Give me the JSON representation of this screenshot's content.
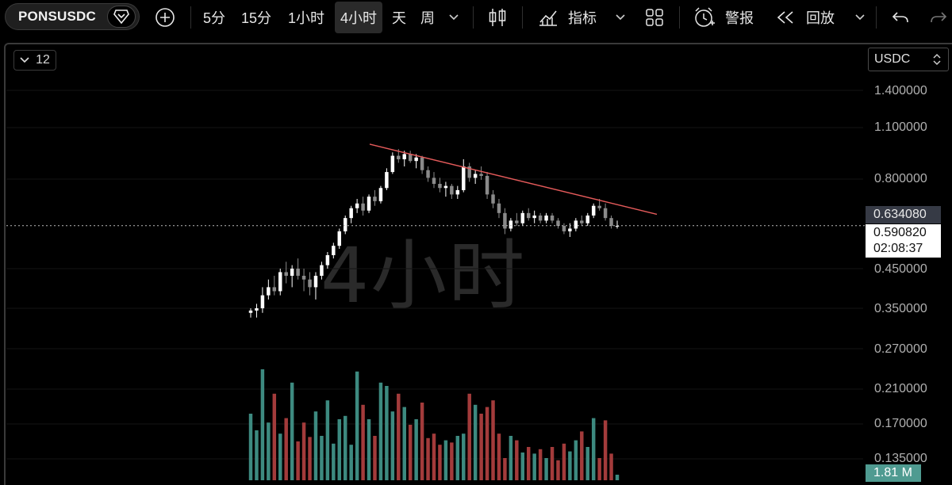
{
  "toolbar": {
    "symbol": "PONSUSDC",
    "intervals": [
      {
        "label": "5分",
        "active": false
      },
      {
        "label": "15分",
        "active": false
      },
      {
        "label": "1小时",
        "active": false
      },
      {
        "label": "4小时",
        "active": true
      },
      {
        "label": "天",
        "active": false
      },
      {
        "label": "周",
        "active": false
      }
    ],
    "indicators_label": "指标",
    "alert_label": "警报",
    "replay_label": "回放"
  },
  "chart": {
    "indicator_count": "12",
    "currency": "USDC",
    "watermark": "4小时",
    "price_axis": [
      "1.400000",
      "1.100000",
      "0.800000",
      "0.634080",
      "0.450000",
      "0.350000",
      "0.270000",
      "0.210000",
      "0.170000",
      "0.135000"
    ],
    "high_marker": "0.634080",
    "last_price": "0.590820",
    "countdown": "02:08:37",
    "volume": "1.81 M",
    "colors": {
      "up": "#ffffff",
      "down": "#8a8a8a",
      "trendline": "#e45a5a",
      "vol_up": "#3d8a80",
      "vol_down": "#a33b3b"
    }
  },
  "chart_data": {
    "type": "candlestick",
    "symbol": "PONSUSDC",
    "timeframe": "4小时",
    "price_scale": "log",
    "candles": [
      [
        0.34,
        0.35,
        0.33,
        0.345
      ],
      [
        0.345,
        0.36,
        0.33,
        0.35
      ],
      [
        0.35,
        0.4,
        0.34,
        0.38
      ],
      [
        0.38,
        0.42,
        0.37,
        0.4
      ],
      [
        0.4,
        0.43,
        0.38,
        0.39
      ],
      [
        0.39,
        0.45,
        0.38,
        0.44
      ],
      [
        0.44,
        0.47,
        0.41,
        0.43
      ],
      [
        0.43,
        0.46,
        0.4,
        0.45
      ],
      [
        0.45,
        0.48,
        0.42,
        0.43
      ],
      [
        0.43,
        0.45,
        0.39,
        0.42
      ],
      [
        0.42,
        0.44,
        0.38,
        0.4
      ],
      [
        0.4,
        0.44,
        0.37,
        0.43
      ],
      [
        0.43,
        0.47,
        0.42,
        0.46
      ],
      [
        0.46,
        0.5,
        0.45,
        0.49
      ],
      [
        0.49,
        0.53,
        0.48,
        0.52
      ],
      [
        0.52,
        0.58,
        0.51,
        0.57
      ],
      [
        0.57,
        0.63,
        0.56,
        0.62
      ],
      [
        0.62,
        0.67,
        0.6,
        0.66
      ],
      [
        0.66,
        0.7,
        0.64,
        0.68
      ],
      [
        0.68,
        0.71,
        0.63,
        0.65
      ],
      [
        0.65,
        0.72,
        0.64,
        0.71
      ],
      [
        0.71,
        0.74,
        0.67,
        0.69
      ],
      [
        0.69,
        0.76,
        0.68,
        0.75
      ],
      [
        0.75,
        0.85,
        0.74,
        0.83
      ],
      [
        0.83,
        0.94,
        0.82,
        0.92
      ],
      [
        0.92,
        0.96,
        0.88,
        0.9
      ],
      [
        0.9,
        0.95,
        0.86,
        0.93
      ],
      [
        0.93,
        0.95,
        0.88,
        0.89
      ],
      [
        0.89,
        0.93,
        0.85,
        0.91
      ],
      [
        0.91,
        0.92,
        0.82,
        0.84
      ],
      [
        0.84,
        0.86,
        0.78,
        0.8
      ],
      [
        0.8,
        0.83,
        0.75,
        0.77
      ],
      [
        0.77,
        0.8,
        0.73,
        0.75
      ],
      [
        0.75,
        0.78,
        0.71,
        0.76
      ],
      [
        0.76,
        0.77,
        0.7,
        0.72
      ],
      [
        0.72,
        0.76,
        0.7,
        0.74
      ],
      [
        0.74,
        0.9,
        0.73,
        0.86
      ],
      [
        0.86,
        0.88,
        0.78,
        0.8
      ],
      [
        0.8,
        0.84,
        0.77,
        0.82
      ],
      [
        0.82,
        0.86,
        0.79,
        0.81
      ],
      [
        0.81,
        0.83,
        0.7,
        0.72
      ],
      [
        0.72,
        0.74,
        0.66,
        0.68
      ],
      [
        0.68,
        0.7,
        0.62,
        0.64
      ],
      [
        0.64,
        0.66,
        0.56,
        0.58
      ],
      [
        0.58,
        0.62,
        0.57,
        0.61
      ],
      [
        0.61,
        0.64,
        0.59,
        0.6
      ],
      [
        0.6,
        0.65,
        0.59,
        0.64
      ],
      [
        0.64,
        0.66,
        0.61,
        0.62
      ],
      [
        0.62,
        0.65,
        0.6,
        0.63
      ],
      [
        0.63,
        0.64,
        0.6,
        0.61
      ],
      [
        0.61,
        0.64,
        0.6,
        0.63
      ],
      [
        0.63,
        0.64,
        0.6,
        0.61
      ],
      [
        0.61,
        0.62,
        0.58,
        0.59
      ],
      [
        0.59,
        0.6,
        0.56,
        0.57
      ],
      [
        0.57,
        0.6,
        0.55,
        0.58
      ],
      [
        0.58,
        0.62,
        0.57,
        0.61
      ],
      [
        0.61,
        0.63,
        0.59,
        0.6
      ],
      [
        0.6,
        0.64,
        0.59,
        0.63
      ],
      [
        0.63,
        0.68,
        0.62,
        0.67
      ],
      [
        0.67,
        0.7,
        0.65,
        0.66
      ],
      [
        0.66,
        0.68,
        0.61,
        0.62
      ],
      [
        0.62,
        0.63,
        0.58,
        0.59
      ],
      [
        0.59,
        0.61,
        0.58,
        0.59
      ]
    ],
    "volume": [
      0.6,
      0.45,
      1.0,
      0.52,
      0.78,
      0.42,
      0.56,
      0.88,
      0.35,
      0.52,
      0.39,
      0.62,
      0.4,
      0.72,
      0.33,
      0.55,
      0.58,
      0.32,
      0.98,
      0.68,
      0.55,
      0.4,
      0.88,
      0.85,
      0.62,
      0.78,
      0.66,
      0.5,
      0.55,
      0.7,
      0.38,
      0.42,
      0.32,
      0.36,
      0.34,
      0.4,
      0.42,
      0.78,
      0.68,
      0.6,
      0.66,
      0.72,
      0.42,
      0.2,
      0.4,
      0.36,
      0.25,
      0.3,
      0.24,
      0.28,
      0.2,
      0.3,
      0.18,
      0.33,
      0.26,
      0.36,
      0.44,
      0.3,
      0.56,
      0.2,
      0.54,
      0.24,
      0.05
    ],
    "trendline": {
      "from": {
        "index": 0,
        "price": 0.99
      },
      "to": {
        "index": 62,
        "price": 0.635
      }
    }
  }
}
